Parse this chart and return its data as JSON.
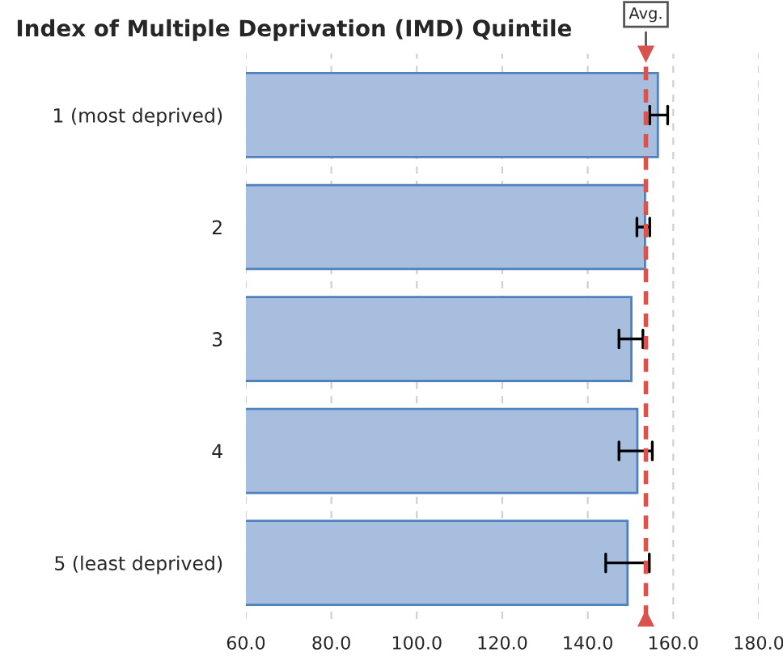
{
  "chart_data": {
    "type": "bar",
    "orientation": "horizontal",
    "title": "Index of Multiple Deprivation (IMD) Quintile",
    "categories": [
      "1 (most deprived)",
      "2",
      "3",
      "4",
      "5 (least deprived)"
    ],
    "series": [
      {
        "color": "#a7bedf",
        "values": [
          156.4,
          153.4,
          150.2,
          151.6,
          149.3
        ],
        "errors": [
          [
            154.5,
            158.7
          ],
          [
            151.5,
            154.5
          ],
          [
            147.3,
            152.9
          ],
          [
            147.3,
            155.1
          ],
          [
            144.2,
            154.4
          ]
        ]
      }
    ],
    "xlim": [
      60,
      180
    ],
    "xticks": [
      {
        "value": 60,
        "label": "60.0"
      },
      {
        "value": 80,
        "label": "80.0"
      },
      {
        "value": 100,
        "label": "100.0"
      },
      {
        "value": 120,
        "label": "120.0"
      },
      {
        "value": 140,
        "label": "140.0"
      },
      {
        "value": 160,
        "label": "160.0"
      },
      {
        "value": 180,
        "label": "180.0"
      }
    ],
    "grid": "x",
    "ref_lines": [
      {
        "axis": "x",
        "value": 153.6,
        "label": "Avg.",
        "color": "#d9534f",
        "line_style": "dashed"
      }
    ]
  }
}
